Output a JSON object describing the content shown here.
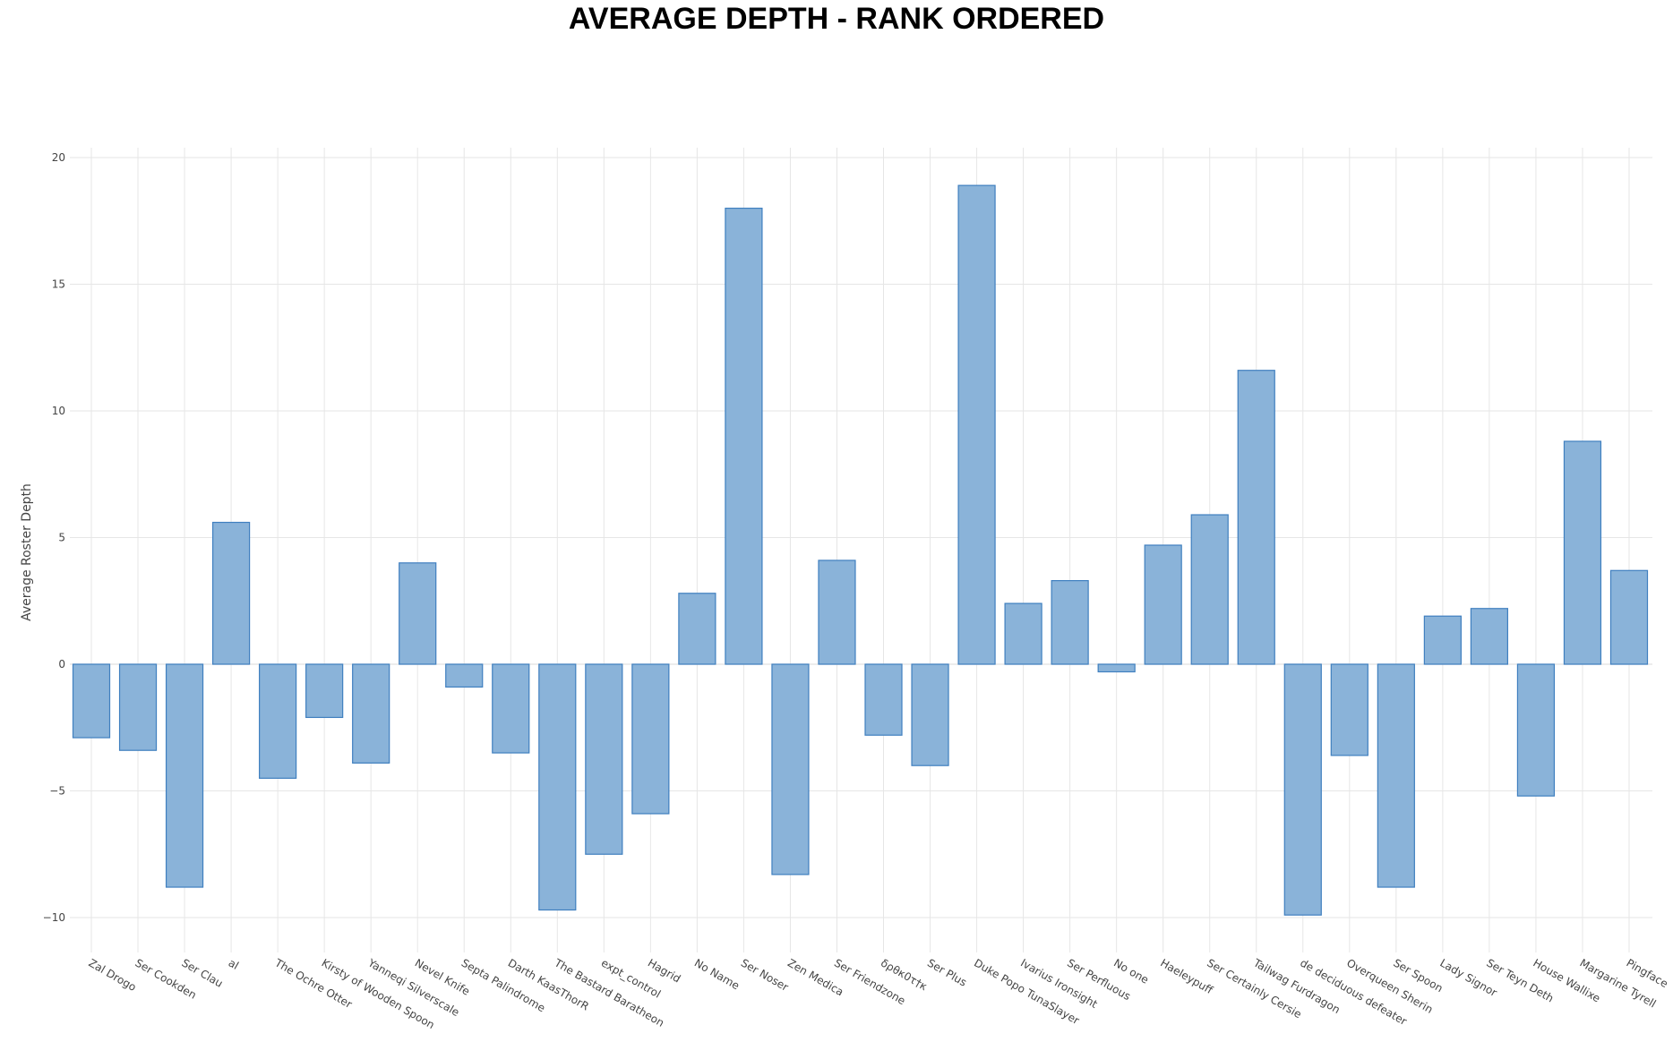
{
  "chart_data": {
    "type": "bar",
    "title": "AVERAGE DEPTH - RANK ORDERED",
    "xlabel": "",
    "ylabel": "Average Roster Depth",
    "ylim": [
      -10.5,
      20.5
    ],
    "yticks": [
      -10,
      -5,
      0,
      5,
      10,
      15,
      20
    ],
    "grid": true,
    "bar_color": "#8ab3d9",
    "bar_edge_color": "#3f7fbf",
    "categories": [
      "Zal Drogo",
      "Ser Cookden",
      "Ser Clau",
      "al",
      "The Ochre Otter",
      "Kirsty of Wooden Spoon",
      "Yanneqi Silverscale",
      "Nevel Knife",
      "Septa Palindrome",
      "Darth KaasThorR",
      "The Bastard Baratheon",
      "expt_control",
      "Hagrid",
      "No Name",
      "Ser Noser",
      "Zen Medica",
      "Ser Friendzone",
      "δρθκ0τ†κ",
      "Ser Plus",
      "Duke Popo TunaSlayer",
      "Ivarius Ironsight",
      "Ser Perfluous",
      "No one",
      "Haeleypuff",
      "Ser Certainly Cersie",
      "Tailwag Furdragon",
      "de deciduous defeater",
      "Overqueen Sherin",
      "Ser Spoon",
      "Lady Signor",
      "Ser Teyn Deth",
      "House Wallixe",
      "Margarine Tyrell",
      "Pingface"
    ],
    "values": [
      -2.9,
      -3.4,
      -8.8,
      5.6,
      -4.5,
      -2.1,
      -3.9,
      4.0,
      -0.9,
      -3.5,
      -9.7,
      -7.5,
      -5.9,
      2.8,
      18.0,
      -8.3,
      4.1,
      -2.8,
      -4.0,
      18.9,
      2.4,
      3.3,
      -0.3,
      4.7,
      5.9,
      11.6,
      -9.9,
      -3.6,
      -8.8,
      1.9,
      2.2,
      -5.2,
      8.8,
      3.7
    ]
  }
}
